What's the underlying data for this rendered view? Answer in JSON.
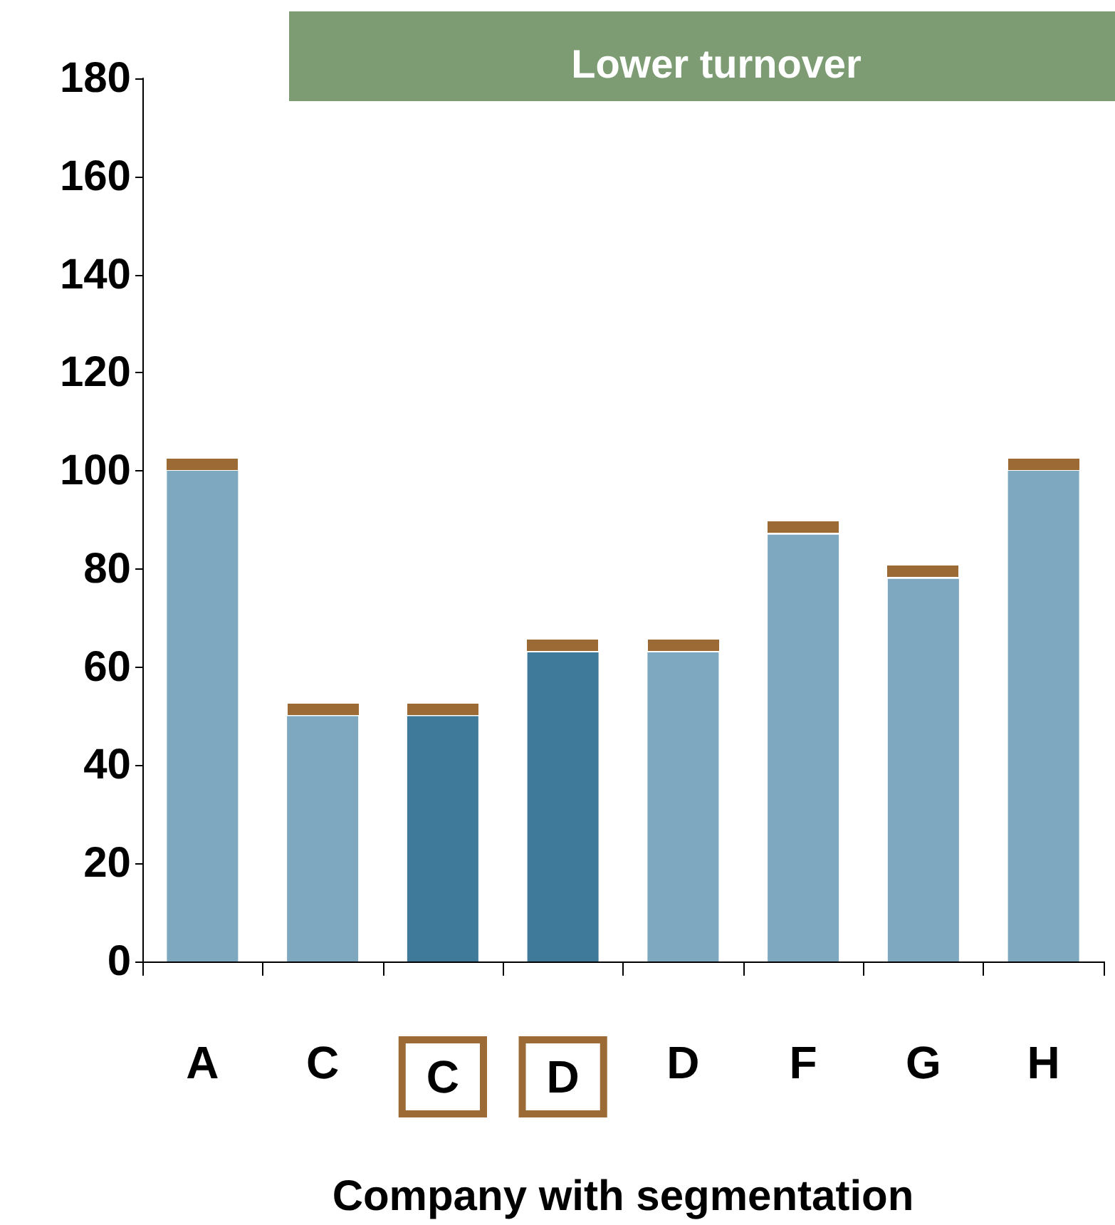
{
  "chart_data": {
    "type": "bar",
    "title": "Lower turnover",
    "xlabel": "Company with segmentation",
    "categories": [
      "A",
      "C",
      "C",
      "D",
      "D",
      "F",
      "G",
      "H"
    ],
    "series": [
      {
        "values": [
          100,
          50,
          50,
          63,
          63,
          87,
          78,
          100
        ],
        "colors": [
          "#7ea8c0",
          "#7ea8c0",
          "#3f7a9a",
          "#3f7a9a",
          "#7ea8c0",
          "#7ea8c0",
          "#7ea8c0",
          "#7ea8c0"
        ]
      }
    ],
    "ylim": [
      0,
      180
    ],
    "yticks": [
      0,
      20,
      40,
      60,
      80,
      100,
      120,
      140,
      160,
      180
    ],
    "grid": false
  }
}
